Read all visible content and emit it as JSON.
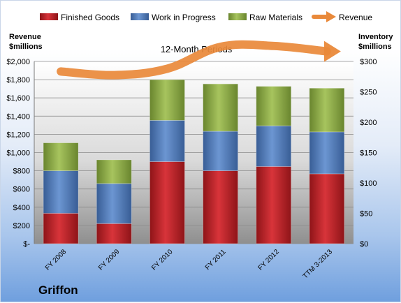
{
  "chart_data": {
    "type": "bar",
    "stacked": true,
    "title": "12-Month Periods",
    "company": "Griffon",
    "left_axis_label": [
      "Revenue",
      "$millions"
    ],
    "right_axis_label": [
      "Inventory",
      "$millions"
    ],
    "categories": [
      "FY 2008",
      "FY 2009",
      "FY 2010",
      "FY 2011",
      "FY 2012",
      "TTM 3-2013"
    ],
    "left_ylim": [
      0,
      2000
    ],
    "left_ticks": [
      {
        "value": 0,
        "label": "$-"
      },
      {
        "value": 200,
        "label": "$200"
      },
      {
        "value": 400,
        "label": "$400"
      },
      {
        "value": 600,
        "label": "$600"
      },
      {
        "value": 800,
        "label": "$800"
      },
      {
        "value": 1000,
        "label": "$1,000"
      },
      {
        "value": 1200,
        "label": "$1,200"
      },
      {
        "value": 1400,
        "label": "$1,400"
      },
      {
        "value": 1600,
        "label": "$1,600"
      },
      {
        "value": 1800,
        "label": "$1,800"
      },
      {
        "value": 2000,
        "label": "$2,000"
      }
    ],
    "right_ylim": [
      0,
      300
    ],
    "right_ticks": [
      {
        "value": 0,
        "label": "$0"
      },
      {
        "value": 50,
        "label": "$50"
      },
      {
        "value": 100,
        "label": "$100"
      },
      {
        "value": 150,
        "label": "$150"
      },
      {
        "value": 200,
        "label": "$200"
      },
      {
        "value": 250,
        "label": "$250"
      },
      {
        "value": 300,
        "label": "$300"
      }
    ],
    "series": [
      {
        "name": "Finished Goods",
        "color": "#c0282d",
        "axis": "right",
        "values": [
          50,
          33,
          135,
          120,
          127,
          115
        ]
      },
      {
        "name": "Work in Progress",
        "color": "#4f7dbf",
        "axis": "right",
        "values": [
          70,
          66,
          68,
          65,
          67,
          69
        ]
      },
      {
        "name": "Raw Materials",
        "color": "#8fb046",
        "axis": "right",
        "values": [
          46,
          39,
          67,
          78,
          65,
          72
        ]
      }
    ],
    "line_series": {
      "name": "Revenue",
      "color": "#e9893a",
      "axis": "left",
      "values": [
        1890,
        1850,
        1920,
        2160,
        2170,
        2110
      ]
    },
    "grid": true,
    "legend_position": "top"
  }
}
